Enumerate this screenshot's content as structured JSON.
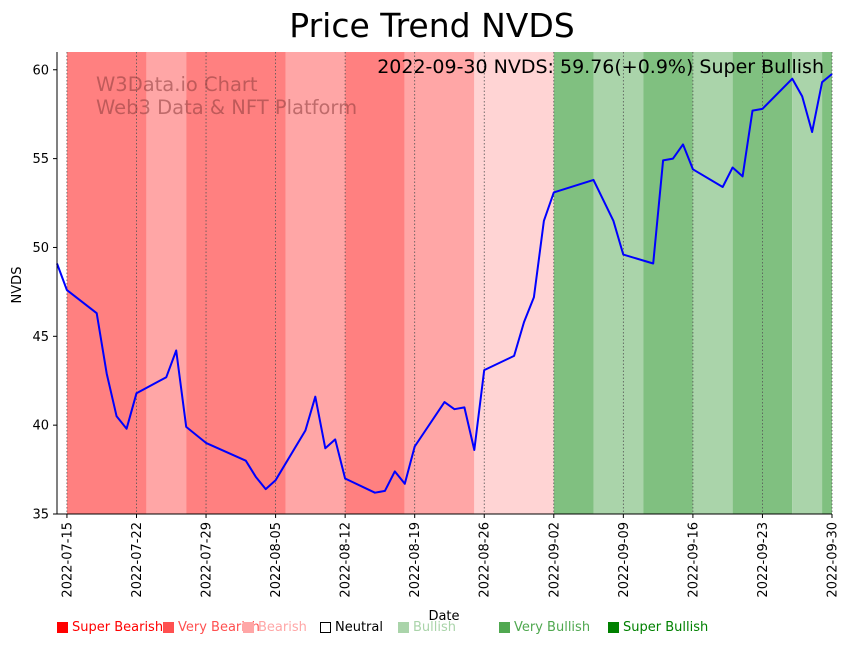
{
  "chart_data": {
    "type": "line",
    "title": "Price Trend NVDS",
    "xlabel": "Date",
    "ylabel": "NVDS",
    "ylim": [
      35,
      61
    ],
    "xlim": [
      "2022-07-14",
      "2022-09-30"
    ],
    "yticks": [
      35,
      40,
      45,
      50,
      55,
      60
    ],
    "xticks": [
      "2022-07-15",
      "2022-07-22",
      "2022-07-29",
      "2022-08-05",
      "2022-08-12",
      "2022-08-19",
      "2022-08-26",
      "2022-09-02",
      "2022-09-09",
      "2022-09-16",
      "2022-09-23",
      "2022-09-30"
    ],
    "grid": "vertical dotted at x ticks",
    "line_color": "#0000ff",
    "series": [
      {
        "name": "NVDS",
        "x": [
          "2022-07-14",
          "2022-07-15",
          "2022-07-18",
          "2022-07-19",
          "2022-07-20",
          "2022-07-21",
          "2022-07-22",
          "2022-07-25",
          "2022-07-26",
          "2022-07-27",
          "2022-07-29",
          "2022-08-02",
          "2022-08-03",
          "2022-08-04",
          "2022-08-05",
          "2022-08-08",
          "2022-08-09",
          "2022-08-10",
          "2022-08-11",
          "2022-08-12",
          "2022-08-15",
          "2022-08-16",
          "2022-08-17",
          "2022-08-18",
          "2022-08-19",
          "2022-08-22",
          "2022-08-23",
          "2022-08-24",
          "2022-08-25",
          "2022-08-26",
          "2022-08-29",
          "2022-08-30",
          "2022-08-31",
          "2022-09-01",
          "2022-09-02",
          "2022-09-06",
          "2022-09-08",
          "2022-09-09",
          "2022-09-12",
          "2022-09-13",
          "2022-09-14",
          "2022-09-15",
          "2022-09-16",
          "2022-09-19",
          "2022-09-20",
          "2022-09-21",
          "2022-09-22",
          "2022-09-23",
          "2022-09-26",
          "2022-09-27",
          "2022-09-28",
          "2022-09-29",
          "2022-09-30"
        ],
        "values": [
          49.1,
          47.6,
          46.3,
          42.9,
          40.5,
          39.8,
          41.8,
          42.7,
          44.2,
          39.9,
          39.0,
          38.0,
          37.1,
          36.4,
          36.9,
          39.7,
          41.6,
          38.7,
          39.2,
          37.0,
          36.2,
          36.3,
          37.4,
          36.7,
          38.8,
          41.3,
          40.9,
          41.0,
          38.6,
          43.1,
          43.9,
          45.8,
          47.2,
          51.5,
          53.1,
          53.8,
          51.5,
          49.6,
          49.1,
          54.9,
          55.0,
          55.8,
          54.4,
          53.4,
          54.5,
          54.0,
          57.7,
          57.8,
          59.5,
          58.5,
          56.5,
          59.3,
          59.76
        ]
      }
    ],
    "bands": [
      {
        "start": "2022-07-15",
        "end": "2022-07-23",
        "sentiment": "Very Bearish"
      },
      {
        "start": "2022-07-23",
        "end": "2022-07-27",
        "sentiment": "Bearish"
      },
      {
        "start": "2022-07-27",
        "end": "2022-08-06",
        "sentiment": "Very Bearish"
      },
      {
        "start": "2022-08-06",
        "end": "2022-08-12",
        "sentiment": "Bearish"
      },
      {
        "start": "2022-08-12",
        "end": "2022-08-18",
        "sentiment": "Very Bearish"
      },
      {
        "start": "2022-08-18",
        "end": "2022-08-25",
        "sentiment": "Bearish"
      },
      {
        "start": "2022-08-25",
        "end": "2022-09-02",
        "sentiment": "Light Bearish"
      },
      {
        "start": "2022-09-02",
        "end": "2022-09-06",
        "sentiment": "Very Bullish"
      },
      {
        "start": "2022-09-06",
        "end": "2022-09-11",
        "sentiment": "Bullish"
      },
      {
        "start": "2022-09-11",
        "end": "2022-09-16",
        "sentiment": "Very Bullish"
      },
      {
        "start": "2022-09-16",
        "end": "2022-09-20",
        "sentiment": "Bullish"
      },
      {
        "start": "2022-09-20",
        "end": "2022-09-26",
        "sentiment": "Very Bullish"
      },
      {
        "start": "2022-09-26",
        "end": "2022-09-29",
        "sentiment": "Bullish"
      },
      {
        "start": "2022-09-29",
        "end": "2022-09-30",
        "sentiment": "Very Bullish"
      }
    ],
    "band_colors": {
      "Very Bearish": "#ff8080",
      "Bearish": "#ffa6a6",
      "Light Bearish": "#ffd4d4",
      "Very Bullish": "#80c080",
      "Bullish": "#aad4aa"
    },
    "annotation": "2022-09-30 NVDS: 59.76(+0.9%) Super Bullish",
    "watermark": [
      "W3Data.io Chart",
      "Web3 Data & NFT Platform"
    ],
    "legend": [
      {
        "label": "Super Bearish",
        "color": "#ff0000",
        "text_color": "#ff0000",
        "hollow": false
      },
      {
        "label": "Very Bearish",
        "color": "#ff5050",
        "text_color": "#ff5050",
        "hollow": false
      },
      {
        "label": "Bearish",
        "color": "#ffa6a6",
        "text_color": "#ffa6a6",
        "hollow": false
      },
      {
        "label": "Neutral",
        "color": "#000000",
        "text_color": "#000000",
        "hollow": true
      },
      {
        "label": "Bullish",
        "color": "#aad4aa",
        "text_color": "#aad4aa",
        "hollow": false
      },
      {
        "label": "Very Bullish",
        "color": "#50a850",
        "text_color": "#50a850",
        "hollow": false
      },
      {
        "label": "Super Bullish",
        "color": "#008000",
        "text_color": "#008000",
        "hollow": false
      }
    ],
    "legend_placement": "bottom"
  }
}
